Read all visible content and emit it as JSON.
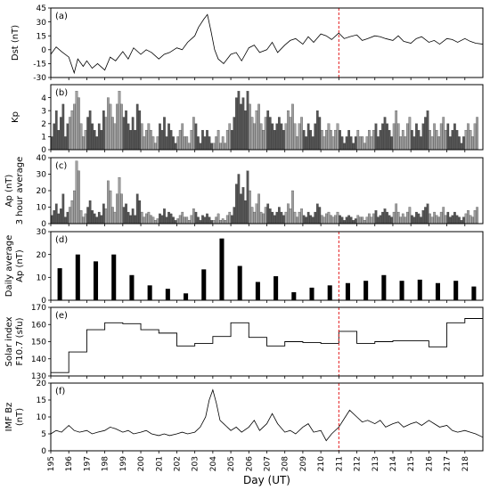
{
  "chart_data": [
    {
      "id": "a",
      "type": "line",
      "panel_label": "(a)",
      "ylabel": "Dst (nT)",
      "ylim": [
        -30,
        45
      ],
      "yticks": [
        -30,
        -15,
        0,
        15,
        30,
        45
      ],
      "x": [
        195.0,
        195.3,
        195.6,
        196.0,
        196.3,
        196.5,
        196.8,
        197.0,
        197.3,
        197.6,
        198.0,
        198.3,
        198.6,
        199.0,
        199.3,
        199.6,
        200.0,
        200.3,
        200.6,
        201.0,
        201.3,
        201.6,
        202.0,
        202.3,
        202.6,
        203.0,
        203.2,
        203.5,
        203.7,
        203.9,
        204.1,
        204.3,
        204.6,
        205.0,
        205.3,
        205.6,
        206.0,
        206.3,
        206.6,
        207.0,
        207.3,
        207.6,
        208.0,
        208.3,
        208.6,
        209.0,
        209.3,
        209.6,
        210.0,
        210.3,
        210.6,
        211.0,
        211.3,
        211.6,
        212.0,
        212.3,
        212.6,
        213.0,
        213.3,
        213.6,
        214.0,
        214.3,
        214.6,
        215.0,
        215.3,
        215.6,
        216.0,
        216.3,
        216.6,
        217.0,
        217.3,
        217.6,
        218.0,
        218.3,
        218.6,
        219.0
      ],
      "values": [
        -5,
        3,
        -2,
        -8,
        -25,
        -10,
        -18,
        -12,
        -20,
        -15,
        -22,
        -8,
        -12,
        -2,
        -10,
        2,
        -5,
        0,
        -3,
        -10,
        -5,
        -3,
        2,
        0,
        8,
        15,
        24,
        33,
        38,
        20,
        0,
        -10,
        -15,
        -5,
        -3,
        -12,
        2,
        5,
        -3,
        0,
        8,
        -3,
        5,
        10,
        12,
        6,
        14,
        8,
        17,
        15,
        11,
        18,
        12,
        14,
        16,
        10,
        12,
        15,
        14,
        12,
        10,
        15,
        9,
        7,
        12,
        14,
        8,
        10,
        6,
        12,
        11,
        8,
        12,
        9,
        7,
        6
      ],
      "marker_x": 211.0
    },
    {
      "id": "b",
      "type": "bar",
      "panel_label": "(b)",
      "ylabel": "Kp",
      "ylim": [
        0,
        5
      ],
      "yticks": [
        0,
        1,
        2,
        3,
        4
      ],
      "x_start": 195.0,
      "step_days": 0.125,
      "values": [
        1.0,
        2.0,
        3.0,
        1.5,
        2.5,
        3.5,
        1.0,
        2.0,
        2.5,
        3.0,
        3.5,
        4.5,
        4.0,
        2.0,
        1.0,
        1.5,
        2.5,
        3.0,
        2.0,
        1.5,
        1.0,
        2.0,
        1.5,
        3.0,
        2.5,
        4.0,
        3.5,
        2.5,
        2.0,
        3.5,
        4.5,
        3.5,
        2.5,
        3.0,
        2.0,
        1.5,
        2.5,
        1.5,
        3.5,
        3.0,
        2.0,
        1.0,
        1.5,
        2.0,
        1.5,
        1.0,
        0.5,
        1.0,
        2.0,
        1.5,
        2.5,
        1.0,
        2.0,
        1.5,
        1.0,
        0.5,
        1.0,
        1.5,
        2.0,
        1.0,
        1.0,
        0.5,
        1.5,
        2.5,
        2.0,
        1.0,
        0.5,
        1.5,
        1.0,
        1.5,
        1.0,
        0.5,
        0.5,
        1.0,
        1.5,
        0.5,
        1.0,
        0.5,
        1.5,
        2.0,
        1.5,
        2.5,
        4.0,
        4.5,
        3.5,
        4.0,
        3.0,
        4.5,
        3.5,
        2.5,
        2.0,
        3.0,
        3.5,
        2.0,
        1.5,
        2.5,
        3.0,
        2.5,
        2.0,
        1.5,
        2.0,
        2.5,
        2.0,
        1.5,
        2.0,
        3.0,
        2.5,
        3.5,
        2.0,
        1.0,
        2.0,
        2.5,
        1.5,
        1.0,
        2.0,
        1.5,
        1.0,
        2.0,
        3.0,
        2.5,
        1.5,
        1.0,
        1.5,
        2.0,
        1.5,
        1.0,
        1.5,
        2.0,
        1.5,
        1.0,
        0.5,
        1.0,
        1.5,
        1.0,
        0.5,
        1.0,
        1.5,
        1.0,
        1.0,
        0.5,
        1.0,
        1.5,
        1.0,
        1.5,
        2.0,
        1.0,
        1.5,
        2.0,
        2.5,
        2.0,
        1.5,
        1.0,
        2.0,
        3.0,
        2.0,
        1.0,
        1.5,
        1.0,
        2.0,
        2.5,
        1.5,
        1.0,
        2.0,
        1.5,
        1.0,
        2.0,
        2.5,
        3.0,
        1.5,
        1.0,
        2.0,
        1.5,
        1.0,
        2.0,
        2.5,
        1.5,
        2.0,
        1.0,
        1.5,
        2.0,
        1.5,
        1.0,
        0.5,
        1.0,
        1.5,
        2.0,
        1.5,
        1.0,
        2.0,
        2.5
      ]
    },
    {
      "id": "c",
      "type": "bar",
      "panel_label": "(c)",
      "ylabel": "Ap (nT) 3 hour average",
      "ylabel_lines": [
        "Ap (nT)",
        "3 hour average"
      ],
      "ylim": [
        0,
        40
      ],
      "yticks": [
        0,
        10,
        20,
        30,
        40
      ],
      "x_start": 195.0,
      "step_days": 0.125,
      "values": [
        5,
        8,
        12,
        6,
        9,
        18,
        4,
        7,
        10,
        14,
        20,
        38,
        32,
        8,
        4,
        6,
        10,
        14,
        8,
        6,
        4,
        7,
        5,
        12,
        9,
        26,
        20,
        10,
        7,
        18,
        28,
        18,
        10,
        12,
        7,
        5,
        9,
        5,
        18,
        14,
        7,
        4,
        6,
        7,
        5,
        4,
        2,
        3,
        6,
        5,
        9,
        4,
        7,
        6,
        4,
        2,
        3,
        5,
        7,
        4,
        4,
        2,
        5,
        9,
        7,
        4,
        2,
        5,
        4,
        6,
        4,
        2,
        2,
        4,
        6,
        2,
        3,
        2,
        5,
        7,
        5,
        10,
        24,
        30,
        18,
        22,
        14,
        32,
        20,
        10,
        7,
        12,
        18,
        7,
        6,
        10,
        12,
        9,
        7,
        5,
        7,
        10,
        7,
        5,
        7,
        12,
        9,
        20,
        7,
        4,
        7,
        9,
        5,
        4,
        7,
        5,
        4,
        7,
        12,
        10,
        5,
        4,
        6,
        7,
        5,
        4,
        5,
        7,
        5,
        4,
        2,
        4,
        5,
        4,
        2,
        3,
        5,
        4,
        4,
        2,
        4,
        6,
        4,
        6,
        8,
        4,
        5,
        7,
        9,
        7,
        5,
        4,
        7,
        12,
        7,
        4,
        6,
        4,
        7,
        10,
        5,
        4,
        7,
        6,
        4,
        8,
        10,
        12,
        6,
        4,
        7,
        5,
        4,
        7,
        10,
        5,
        7,
        4,
        5,
        7,
        5,
        4,
        2,
        4,
        6,
        8,
        5,
        4,
        8,
        10
      ]
    },
    {
      "id": "d",
      "type": "bar",
      "panel_label": "(d)",
      "ylabel": "Daily average Ap (nT)",
      "ylabel_lines": [
        "Daily average",
        "Ap (nT)"
      ],
      "ylim": [
        0,
        30
      ],
      "yticks": [
        0,
        10,
        20,
        30
      ],
      "categories": [
        195,
        196,
        197,
        198,
        199,
        200,
        201,
        202,
        203,
        204,
        205,
        206,
        207,
        208,
        209,
        210,
        211,
        212,
        213,
        214,
        215,
        216,
        217,
        218
      ],
      "values": [
        14,
        20,
        17,
        20,
        11,
        6.5,
        5,
        3,
        13.5,
        27,
        15,
        8,
        10.5,
        3.5,
        5.5,
        6.5,
        7.5,
        8.5,
        11,
        8.5,
        9,
        7.5,
        8.5,
        6
      ],
      "marker_x": 211.0
    },
    {
      "id": "e",
      "type": "line",
      "panel_label": "(e)",
      "ylabel": "Solar index F10.7 (sfu)",
      "ylabel_lines": [
        "Solar index",
        "F10.7 (sfu)"
      ],
      "ylim": [
        130,
        170
      ],
      "yticks": [
        130,
        140,
        150,
        160,
        170
      ],
      "step": true,
      "categories": [
        195,
        196,
        197,
        198,
        199,
        200,
        201,
        202,
        203,
        204,
        205,
        206,
        207,
        208,
        209,
        210,
        211,
        212,
        213,
        214,
        215,
        216,
        217,
        218
      ],
      "values": [
        132,
        144,
        157,
        161,
        160.5,
        157,
        155,
        147.5,
        149,
        153,
        161,
        152.5,
        147.5,
        150,
        149.5,
        149,
        156,
        149,
        150,
        150.5,
        150.5,
        147,
        161,
        163.5
      ],
      "marker_x": 211.0
    },
    {
      "id": "f",
      "type": "line",
      "panel_label": "(f)",
      "ylabel": "IMF Bz (nT)",
      "ylabel_lines": [
        "IMF Bz",
        "(nT)"
      ],
      "ylim": [
        0,
        20
      ],
      "yticks": [
        0,
        5,
        10,
        15,
        20
      ],
      "x": [
        195.0,
        195.3,
        195.6,
        196.0,
        196.3,
        196.6,
        197.0,
        197.3,
        197.6,
        198.0,
        198.3,
        198.6,
        199.0,
        199.3,
        199.6,
        200.0,
        200.3,
        200.6,
        201.0,
        201.3,
        201.6,
        202.0,
        202.3,
        202.6,
        203.0,
        203.3,
        203.6,
        203.8,
        204.0,
        204.2,
        204.4,
        204.6,
        205.0,
        205.3,
        205.6,
        206.0,
        206.3,
        206.6,
        207.0,
        207.3,
        207.6,
        208.0,
        208.3,
        208.6,
        209.0,
        209.3,
        209.6,
        210.0,
        210.3,
        210.6,
        211.0,
        211.3,
        211.6,
        212.0,
        212.3,
        212.6,
        213.0,
        213.3,
        213.6,
        214.0,
        214.3,
        214.6,
        215.0,
        215.3,
        215.6,
        216.0,
        216.3,
        216.6,
        217.0,
        217.3,
        217.6,
        218.0,
        218.3,
        218.6,
        219.0
      ],
      "values": [
        5,
        6,
        5.5,
        7.5,
        6,
        5.5,
        6,
        5,
        5.5,
        6,
        7,
        6.5,
        5.5,
        6,
        5,
        5.5,
        6,
        5,
        4.5,
        5,
        4.5,
        5,
        5.5,
        5,
        5.5,
        7,
        10,
        15,
        18,
        14,
        9,
        8,
        6,
        7,
        5.5,
        7,
        9,
        6,
        8,
        11,
        8,
        5.5,
        6,
        5,
        7,
        8,
        5.5,
        6,
        3,
        5,
        7,
        9.5,
        12,
        10,
        8.5,
        9,
        8,
        9,
        7,
        8,
        8.5,
        7,
        8,
        8.5,
        7.5,
        9,
        8,
        7,
        7.5,
        6,
        5.5,
        6,
        5.5,
        5,
        4
      ],
      "marker_x": 211.0
    }
  ],
  "x_axis": {
    "label": "Day (UT)",
    "range": [
      195,
      219
    ],
    "ticks": [
      195,
      196,
      197,
      198,
      199,
      200,
      201,
      202,
      203,
      204,
      205,
      206,
      207,
      208,
      209,
      210,
      211,
      212,
      213,
      214,
      215,
      216,
      217,
      218
    ],
    "tick_labels": [
      "195",
      "196",
      "197",
      "198",
      "199",
      "200",
      "201",
      "202",
      "203",
      "204",
      "205",
      "206",
      "207",
      "208",
      "209",
      "210",
      "211",
      "212",
      "213",
      "214",
      "215",
      "216",
      "217",
      "218"
    ]
  },
  "colors": {
    "line": "#000000",
    "bar_dark": "#555555",
    "bar_light": "#a0a0a0",
    "bar_daily": "#000000",
    "marker": "#e41a1c"
  }
}
